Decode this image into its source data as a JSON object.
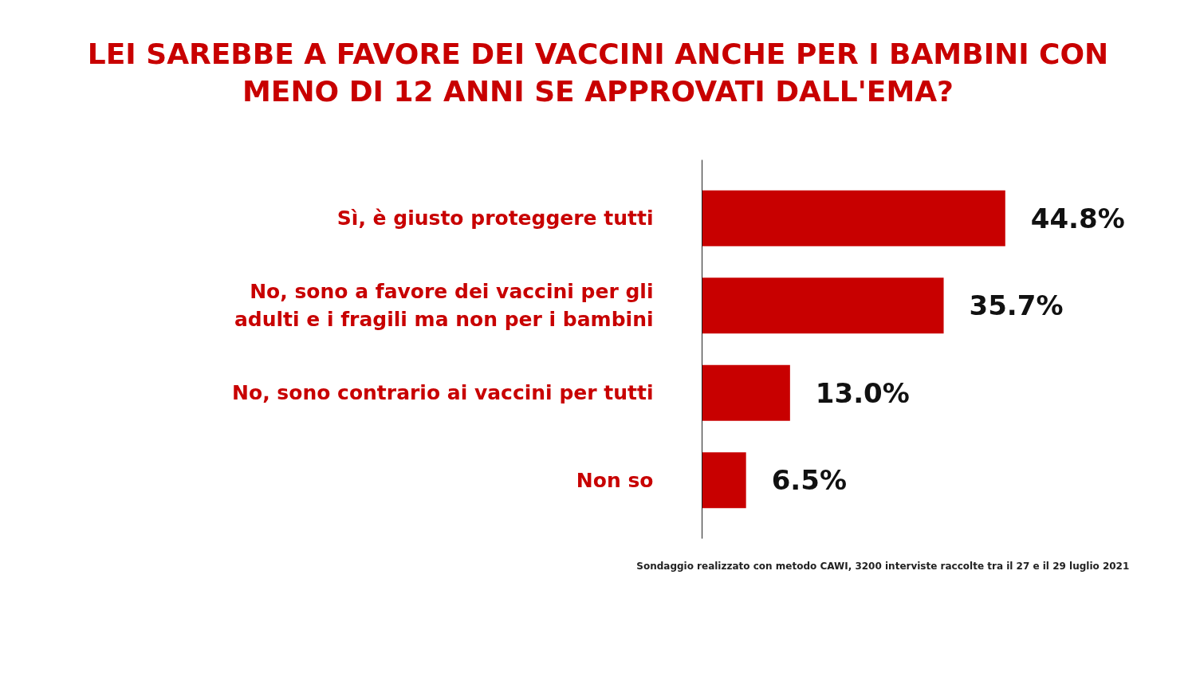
{
  "chart_data": {
    "type": "bar",
    "orientation": "horizontal",
    "title": "LEI SAREBBE A FAVORE DEI VACCINI ANCHE PER I BAMBINI CON MENO DI 12 ANNI SE APPROVATI DALL'EMA?",
    "categories": [
      "Sì, è giusto proteggere tutti",
      "No, sono a favore dei vaccini per gli adulti e i fragili ma non per i bambini",
      "No, sono contrario ai vaccini per tutti",
      "Non so"
    ],
    "values": [
      44.8,
      35.7,
      13.0,
      6.5
    ],
    "value_labels": [
      "44.8%",
      "35.7%",
      "13.0%",
      "6.5%"
    ],
    "color": "#c80000",
    "grid": false,
    "annotations": [
      "Sondaggio realizzato con metodo CAWI, 3200 interviste raccolte tra il 27 e il 29  luglio 2021"
    ]
  }
}
